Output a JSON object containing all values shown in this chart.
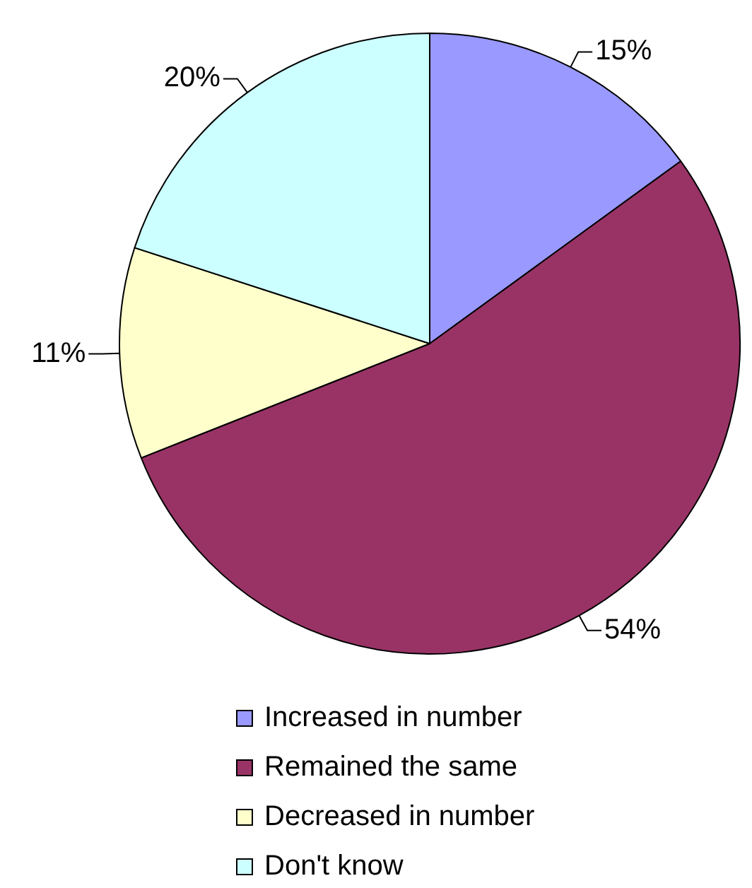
{
  "chart_data": {
    "type": "pie",
    "categories": [
      "Increased in number",
      "Remained the same",
      "Decreased in number",
      "Don't know"
    ],
    "values": [
      15,
      54,
      11,
      20
    ],
    "colors": [
      "#9999ff",
      "#993366",
      "#ffffcc",
      "#ccffff"
    ],
    "value_labels": [
      "15%",
      "54%",
      "11%",
      "20%"
    ],
    "legend": "bottom"
  }
}
